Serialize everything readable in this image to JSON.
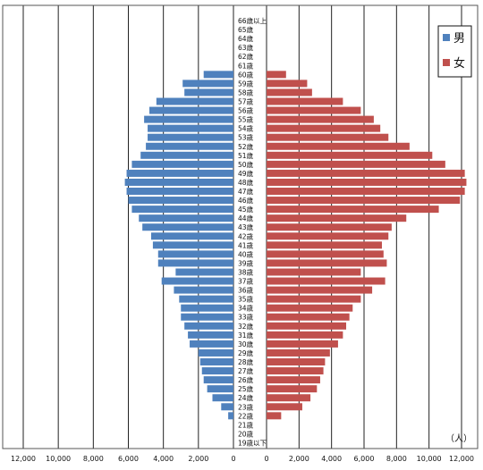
{
  "chart_data": {
    "type": "bar",
    "orientation": "horizontal-butterfly",
    "unit_label": "（人）",
    "legend_placement": "top-right",
    "categories": [
      "19歳以下",
      "20歳",
      "21歳",
      "22歳",
      "23歳",
      "24歳",
      "25歳",
      "26歳",
      "27歳",
      "28歳",
      "29歳",
      "30歳",
      "31歳",
      "32歳",
      "33歳",
      "34歳",
      "35歳",
      "36歳",
      "37歳",
      "38歳",
      "39歳",
      "40歳",
      "41歳",
      "42歳",
      "43歳",
      "44歳",
      "45歳",
      "46歳",
      "47歳",
      "48歳",
      "49歳",
      "50歳",
      "51歳",
      "52歳",
      "53歳",
      "54歳",
      "55歳",
      "56歳",
      "57歳",
      "58歳",
      "59歳",
      "60歳",
      "61歳",
      "62歳",
      "63歳",
      "64歳",
      "65歳",
      "66歳以上"
    ],
    "series": [
      {
        "name": "男",
        "color": "#4f81bd",
        "side": "left",
        "values": [
          0,
          0,
          0,
          300,
          700,
          1200,
          1500,
          1700,
          1800,
          1900,
          2000,
          2500,
          2600,
          2800,
          3000,
          3000,
          3100,
          3400,
          4100,
          3300,
          4300,
          4300,
          4600,
          4700,
          5200,
          5400,
          5800,
          6000,
          6100,
          6200,
          6100,
          5800,
          5300,
          5000,
          4900,
          4900,
          5100,
          4800,
          4400,
          2800,
          2900,
          1700,
          0,
          0,
          0,
          0,
          0,
          0
        ]
      },
      {
        "name": "女",
        "color": "#c0504d",
        "side": "right",
        "values": [
          0,
          0,
          0,
          900,
          2200,
          2700,
          3100,
          3300,
          3500,
          3600,
          3900,
          4400,
          4700,
          4900,
          5100,
          5300,
          5800,
          6500,
          7300,
          5800,
          7400,
          7200,
          7100,
          7500,
          7700,
          8600,
          10600,
          11900,
          12200,
          12300,
          12200,
          11000,
          10200,
          8800,
          7500,
          7000,
          6600,
          5800,
          4700,
          2800,
          2500,
          1200,
          0,
          0,
          0,
          0,
          0,
          0
        ]
      }
    ],
    "x_axis": {
      "left_ticks": [
        "12,000",
        "10,000",
        "8,000",
        "6,000",
        "4,000",
        "2,000",
        "0"
      ],
      "right_ticks": [
        "0",
        "2,000",
        "4,000",
        "6,000",
        "8,000",
        "10,000",
        "12,000"
      ],
      "max": 12000
    },
    "grid": true
  }
}
